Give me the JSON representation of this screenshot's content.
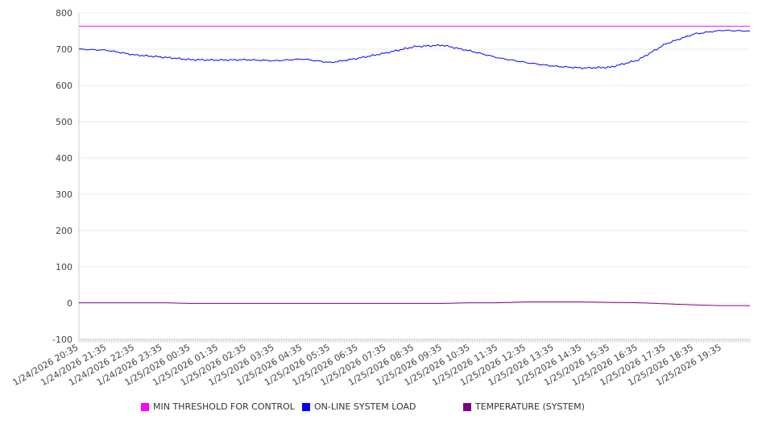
{
  "chart_data": {
    "type": "line",
    "title": "",
    "xlabel": "",
    "ylabel": "",
    "ylim": [
      -100,
      800
    ],
    "yticks": [
      "800",
      "700",
      "600",
      "500",
      "400",
      "300",
      "200",
      "100",
      "0",
      "-100"
    ],
    "yticks_values": [
      800,
      700,
      600,
      500,
      400,
      300,
      200,
      100,
      0,
      -100
    ],
    "xticks": [
      "1/24/2026 20:35",
      "1/24/2026 21:35",
      "1/24/2026 22:35",
      "1/24/2026 23:35",
      "1/25/2026 00:35",
      "1/25/2026 01:35",
      "1/25/2026 02:35",
      "1/25/2026 03:35",
      "1/25/2026 04:35",
      "1/25/2026 05:35",
      "1/25/2026 06:35",
      "1/25/2026 07:35",
      "1/25/2026 08:35",
      "1/25/2026 09:35",
      "1/25/2026 10:35",
      "1/25/2026 11:35",
      "1/25/2026 12:35",
      "1/25/2026 13:35",
      "1/25/2026 14:35",
      "1/25/2026 15:35",
      "1/25/2026 16:35",
      "1/25/2026 17:35",
      "1/25/2026 18:35",
      "1/25/2026 19:35"
    ],
    "grid": true,
    "legend": "bottom",
    "x_hours": [
      0,
      1,
      2,
      3,
      4,
      5,
      6,
      7,
      8,
      9,
      10,
      11,
      12,
      13,
      14,
      15,
      16,
      17,
      18,
      19,
      20,
      21,
      22,
      23,
      24
    ],
    "series": [
      {
        "name": "MIN THRESHOLD FOR CONTROL",
        "color": "#ff00ff",
        "values": [
          763,
          763,
          763,
          763,
          763,
          763,
          763,
          763,
          763,
          763,
          763,
          763,
          763,
          763,
          763,
          763,
          763,
          763,
          763,
          763,
          763,
          763,
          763,
          763,
          763
        ]
      },
      {
        "name": "ON-LINE SYSTEM LOAD",
        "color": "#0000ff",
        "values": [
          700,
          697,
          684,
          678,
          671,
          670,
          671,
          668,
          673,
          663,
          675,
          690,
          707,
          711,
          695,
          676,
          663,
          653,
          648,
          650,
          670,
          715,
          742,
          752,
          750
        ]
      },
      {
        "name": "TEMPERATURE (SYSTEM)",
        "color": "#800080",
        "values": [
          1,
          1,
          1,
          1,
          -1,
          -1,
          -1,
          -1,
          -1,
          -1,
          -1,
          -1,
          -1,
          -1,
          1,
          1,
          3,
          3,
          3,
          2,
          1,
          -2,
          -5,
          -7,
          -7
        ]
      }
    ]
  }
}
